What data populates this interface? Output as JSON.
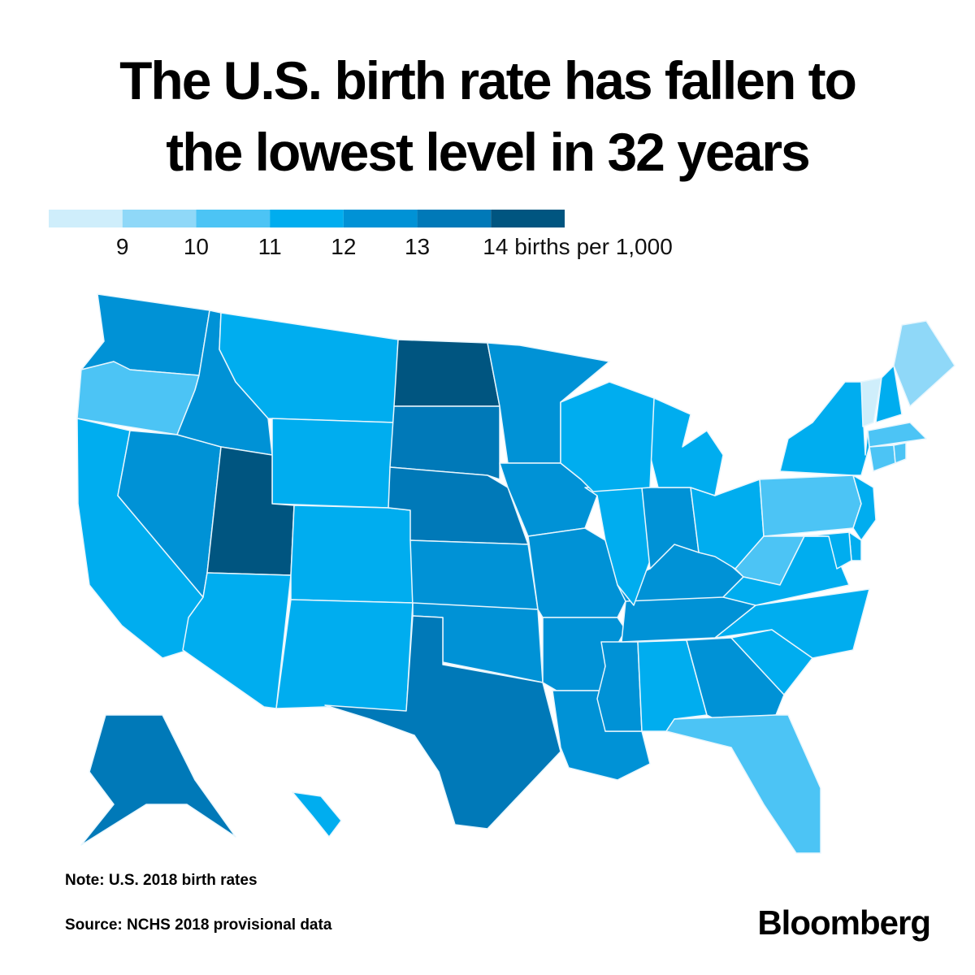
{
  "chart_data": {
    "type": "choropleth",
    "title": "The U.S. birth rate has fallen to the lowest level in 32 years",
    "xlim": [
      8,
      15
    ],
    "xticks": [
      9,
      10,
      11,
      12,
      13,
      {
        "value": 14,
        "label": "14 births per 1,000"
      }
    ],
    "colors": [
      "#cfeefb",
      "#8fd8f8",
      "#4cc4f5",
      "#00adef",
      "#0092d6",
      "#0079b8",
      "#005580"
    ],
    "values": [
      12.5,
      10.5,
      11.5,
      12.5,
      12.5,
      11.5,
      11.5,
      14.5,
      11.5,
      11.5,
      11.5,
      14.2,
      13.5,
      13.4,
      12.6,
      12.8,
      13.4,
      12.5,
      12.6,
      12.2,
      12.5,
      12.8,
      12.3,
      11.8,
      12.2,
      10.5,
      11.4,
      11.6,
      12.1,
      12.3,
      11.9,
      12.4,
      11.8,
      11.2,
      11.1,
      10.5,
      11.9,
      10.8,
      11.5,
      8.6,
      11.2,
      9.4,
      10.3,
      10.1,
      10.2,
      11.5,
      11.3,
      11.9,
      13.5,
      11.9
    ],
    "note": "Note: U.S. 2018 birth rates",
    "source": "Source: NCHS 2018 provisional data",
    "logo": "Bloomberg"
  }
}
